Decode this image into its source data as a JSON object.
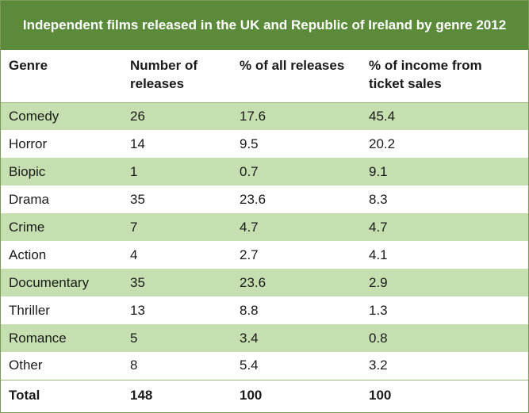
{
  "title": "Independent films released in the UK and Republic of Ireland by genre 2012",
  "colors": {
    "header_green": "#5a8a3a",
    "row_shade": "#c6dfb0"
  },
  "headers": {
    "genre": "Genre",
    "releases_line1": "Number of",
    "releases_line2": "releases",
    "pct_releases": "% of all releases",
    "pct_income_line1": "% of income from",
    "pct_income_line2": "ticket sales"
  },
  "rows": [
    {
      "genre": "Comedy",
      "releases": "26",
      "pct_releases": "17.6",
      "pct_income": "45.4"
    },
    {
      "genre": "Horror",
      "releases": "14",
      "pct_releases": "9.5",
      "pct_income": "20.2"
    },
    {
      "genre": "Biopic",
      "releases": "1",
      "pct_releases": "0.7",
      "pct_income": "9.1"
    },
    {
      "genre": "Drama",
      "releases": "35",
      "pct_releases": "23.6",
      "pct_income": "8.3"
    },
    {
      "genre": "Crime",
      "releases": "7",
      "pct_releases": "4.7",
      "pct_income": "4.7"
    },
    {
      "genre": "Action",
      "releases": "4",
      "pct_releases": "2.7",
      "pct_income": "4.1"
    },
    {
      "genre": "Documentary",
      "releases": "35",
      "pct_releases": "23.6",
      "pct_income": "2.9"
    },
    {
      "genre": "Thriller",
      "releases": "13",
      "pct_releases": "8.8",
      "pct_income": "1.3"
    },
    {
      "genre": "Romance",
      "releases": "5",
      "pct_releases": "3.4",
      "pct_income": "0.8"
    },
    {
      "genre": "Other",
      "releases": "8",
      "pct_releases": "5.4",
      "pct_income": "3.2"
    }
  ],
  "total": {
    "label": "Total",
    "releases": "148",
    "pct_releases": "100",
    "pct_income": "100"
  }
}
